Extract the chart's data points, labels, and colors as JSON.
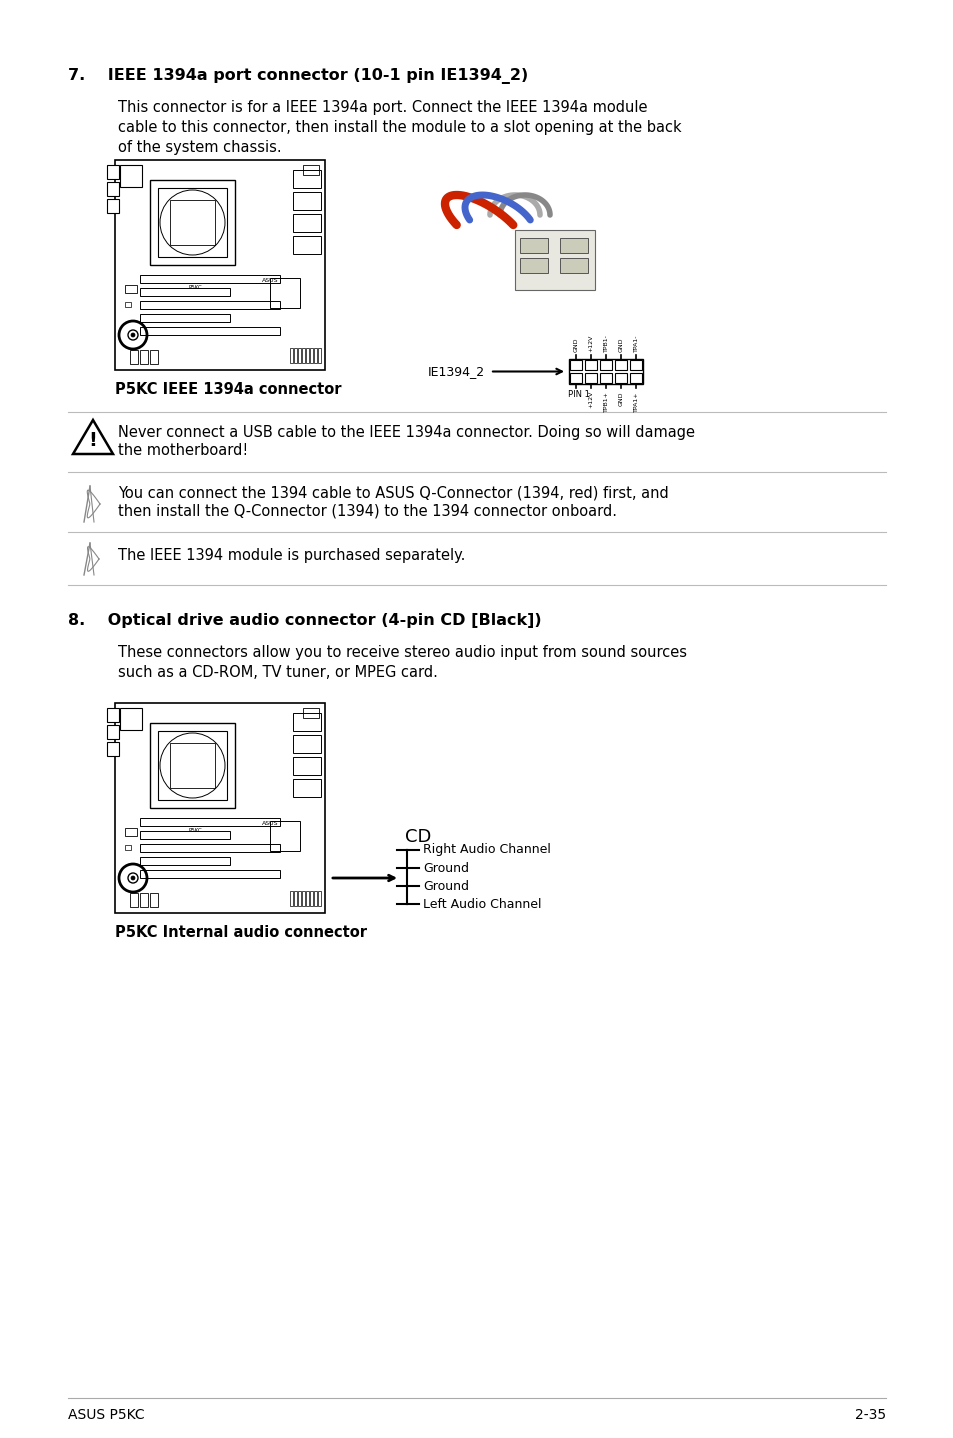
{
  "page_background": "#ffffff",
  "section7_heading": "7.    IEEE 1394a port connector (10-1 pin IE1394_2)",
  "section7_body1": "This connector is for a IEEE 1394a port. Connect the IEEE 1394a module",
  "section7_body2": "cable to this connector, then install the module to a slot opening at the back",
  "section7_body3": "of the system chassis.",
  "ie1394_label": "IE1394_2",
  "p5kc_1394_caption": "P5KC IEEE 1394a connector",
  "warning_text1": "Never connect a USB cable to the IEEE 1394a connector. Doing so will damage",
  "warning_text2": "the motherboard!",
  "note_text1": "You can connect the 1394 cable to ASUS Q-Connector (1394, red) first, and",
  "note_text2": "then install the Q-Connector (1394) to the 1394 connector onboard.",
  "note_text3": "The IEEE 1394 module is purchased separately.",
  "section8_heading": "8.    Optical drive audio connector (4-pin CD [Black])",
  "section8_body1": "These connectors allow you to receive stereo audio input from sound sources",
  "section8_body2": "such as a CD-ROM, TV tuner, or MPEG card.",
  "cd_label": "CD",
  "cd_pin1": "Right Audio Channel",
  "cd_pin2": "Ground",
  "cd_pin3": "Ground",
  "cd_pin4": "Left Audio Channel",
  "p5kc_audio_caption": "P5KC Internal audio connector",
  "footer_left": "ASUS P5KC",
  "footer_right": "2-35",
  "pin1_label": "PIN 1",
  "pin_labels_top": [
    "GND",
    "+12V",
    "TPB1-",
    "GND",
    "TPA1-"
  ],
  "pin_labels_bot": [
    "+12V",
    "TPB1+",
    "GND",
    "TPA1+"
  ]
}
